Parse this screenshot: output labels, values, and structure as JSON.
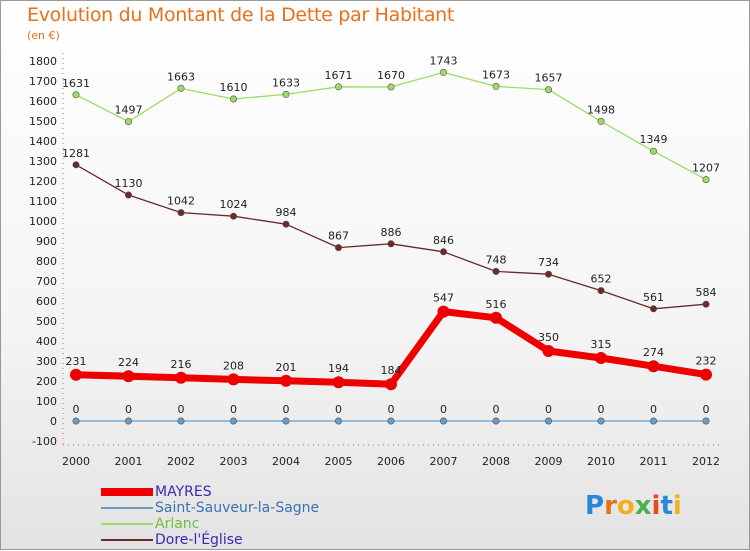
{
  "title": "Evolution du Montant de la Dette par Habitant",
  "subtitle": "(en €)",
  "logo": "Proxiti",
  "chart_data": {
    "type": "line",
    "x": [
      "2000",
      "2001",
      "2002",
      "2003",
      "2004",
      "2005",
      "2006",
      "2007",
      "2008",
      "2009",
      "2010",
      "2011",
      "2012"
    ],
    "ylim": [
      -100,
      1800
    ],
    "yticks": [
      -100,
      0,
      100,
      200,
      300,
      400,
      500,
      600,
      700,
      800,
      900,
      1000,
      1100,
      1200,
      1300,
      1400,
      1500,
      1600,
      1700,
      1800
    ],
    "grid": false,
    "legend_position": "bottom-left",
    "series": [
      {
        "name": "MAYRES",
        "color": "#ee0000",
        "values": [
          231,
          224,
          216,
          208,
          201,
          194,
          184,
          547,
          516,
          350,
          315,
          274,
          232
        ]
      },
      {
        "name": "Saint-Sauveur-la-Sagne",
        "color": "#6a9cc9",
        "values": [
          0,
          0,
          0,
          0,
          0,
          0,
          0,
          0,
          0,
          0,
          0,
          0,
          0
        ]
      },
      {
        "name": "Arlanc",
        "color": "#99dd66",
        "values": [
          1631,
          1497,
          1663,
          1610,
          1633,
          1671,
          1670,
          1743,
          1673,
          1657,
          1498,
          1349,
          1207
        ]
      },
      {
        "name": "Dore-l'Église",
        "color": "#6b2a2a",
        "values": [
          1281,
          1130,
          1042,
          1024,
          984,
          867,
          886,
          846,
          748,
          734,
          652,
          561,
          584
        ]
      }
    ]
  }
}
